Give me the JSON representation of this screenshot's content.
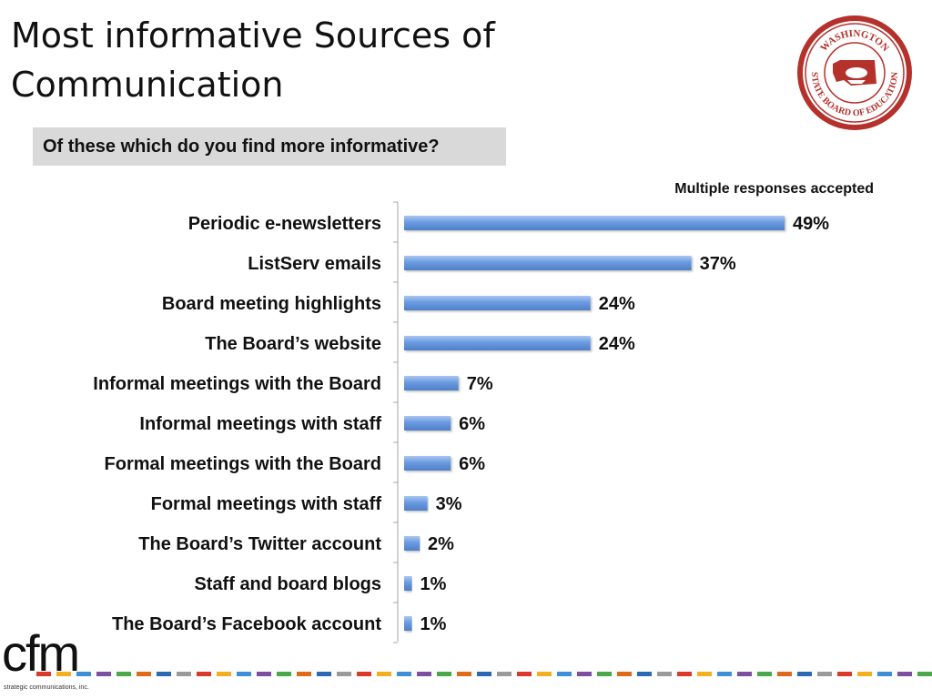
{
  "slide": {
    "title": "Most informative Sources of Communication",
    "question": "Of these which do you find more informative?",
    "note": "Multiple responses accepted"
  },
  "seal": {
    "text_top": "WASHINGTON",
    "text_bottom": "STATE BOARD OF EDUCATION",
    "color": "#b5312b"
  },
  "logo": {
    "text": "cfm",
    "tagline": "strategic communications, inc.",
    "dash_colors": [
      "#d93a2b",
      "#f2b021",
      "#3f8fd6",
      "#7d4fa0",
      "#4aa84a",
      "#e06a1b",
      "#2a6ab3",
      "#9a9a9a"
    ]
  },
  "chart_data": {
    "type": "bar",
    "orientation": "horizontal",
    "categories": [
      "Periodic e-newsletters",
      "ListServ emails",
      "Board meeting highlights",
      "The Board’s website",
      "Informal meetings with the Board",
      "Informal meetings with staff",
      "Formal meetings with the Board",
      "Formal meetings with staff",
      "The Board’s Twitter account",
      "Staff and board blogs",
      "The Board’s Facebook account"
    ],
    "values": [
      49,
      37,
      24,
      24,
      7,
      6,
      6,
      3,
      2,
      1,
      1
    ],
    "data_labels": [
      "49%",
      "37%",
      "24%",
      "24%",
      "7%",
      "6%",
      "6%",
      "3%",
      "2%",
      "1%",
      "1%"
    ],
    "unit": "%",
    "bar_color": "#6b9be0",
    "grid": false,
    "legend": "none"
  }
}
